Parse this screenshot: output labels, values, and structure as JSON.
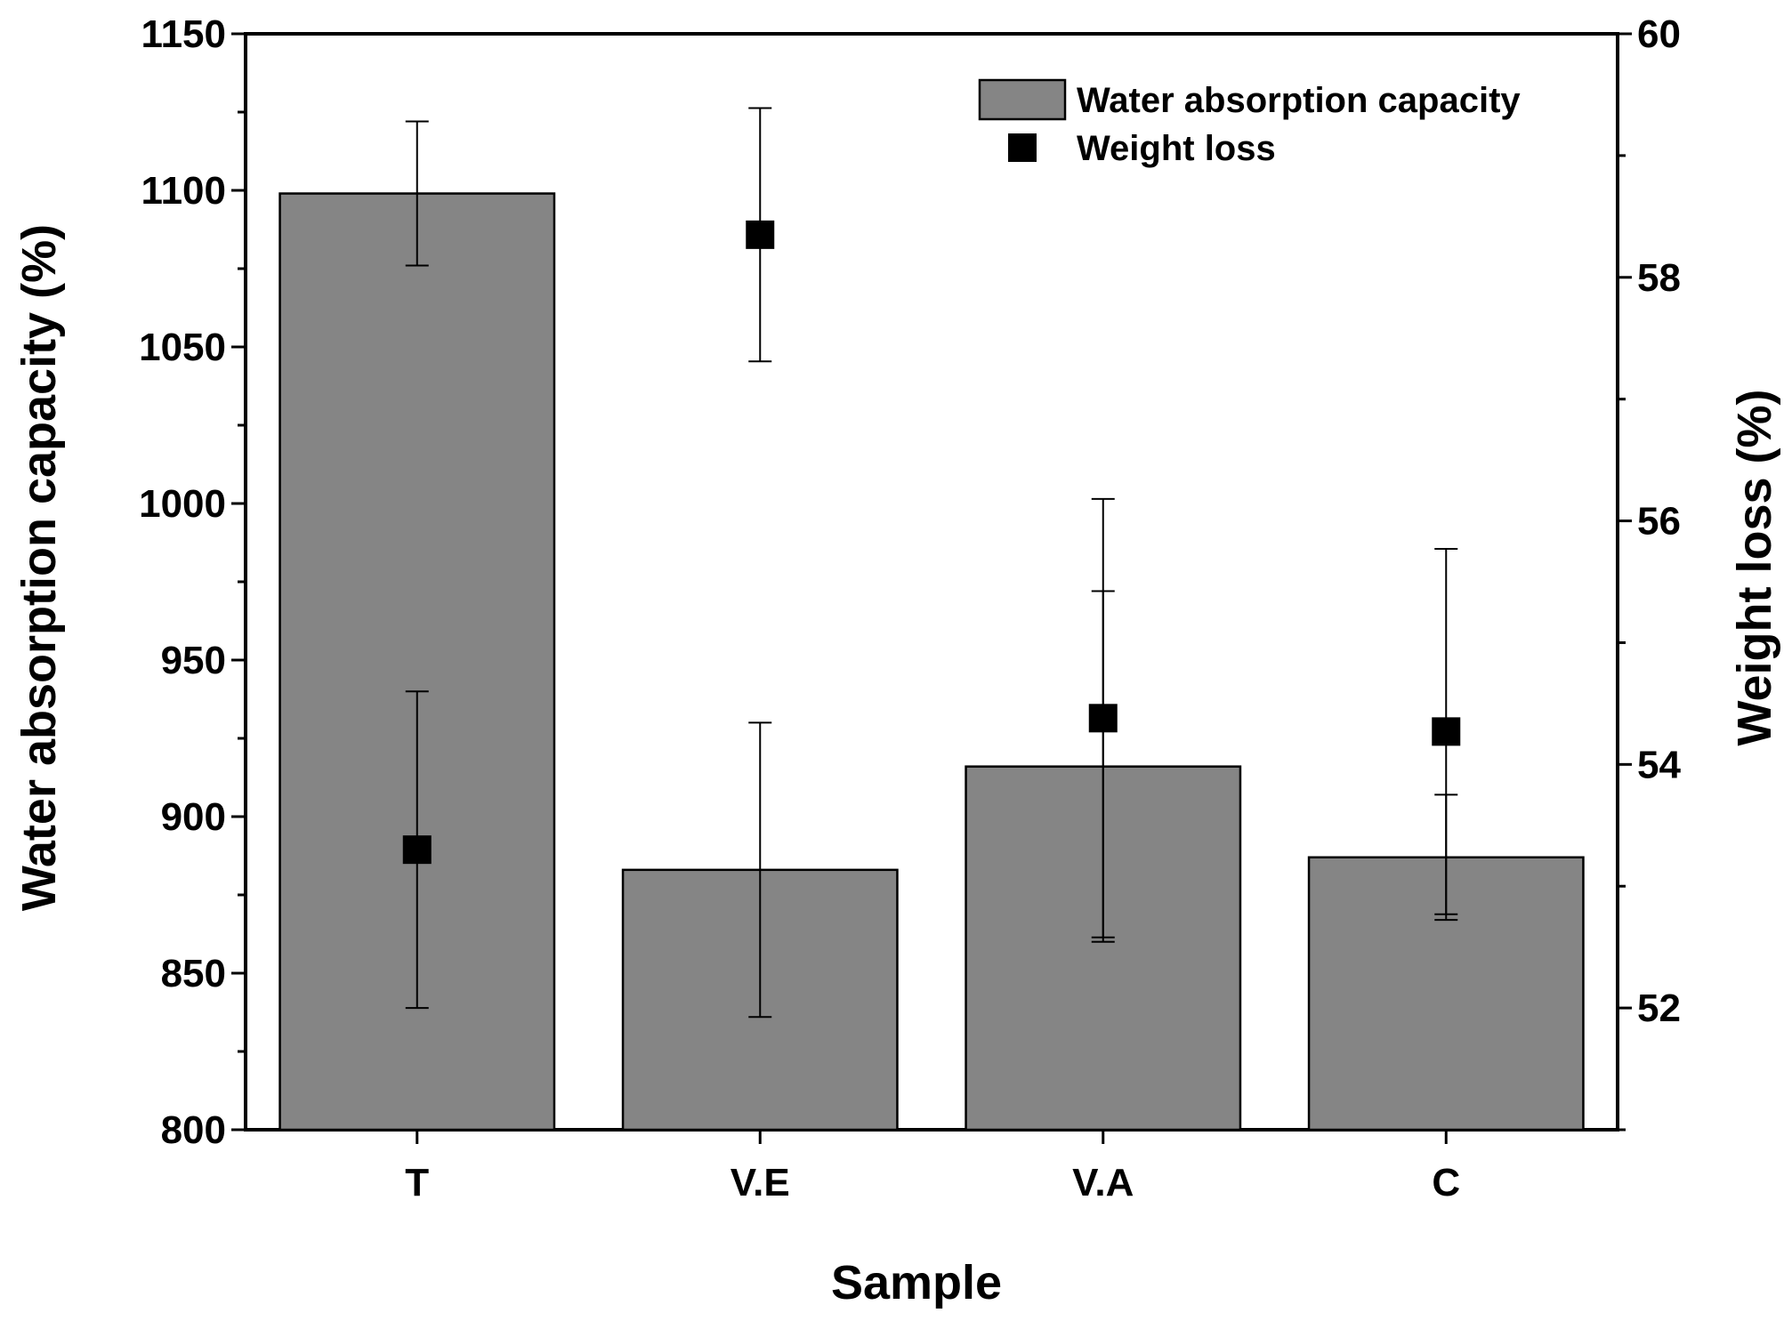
{
  "chart_data": {
    "type": "bar",
    "xlabel": "Sample",
    "ylabel_left": "Water absorption capacity (%)",
    "ylabel_right": "Weight loss (%)",
    "categories": [
      "T",
      "V.E",
      "V.A",
      "C"
    ],
    "y_left": {
      "lim": [
        800,
        1150
      ],
      "ticks": [
        800,
        850,
        900,
        950,
        1000,
        1050,
        1100,
        1150
      ],
      "tick_labels": [
        "800",
        "850",
        "900",
        "950",
        "1000",
        "1050",
        "1100",
        "1150"
      ],
      "minor_step": 25
    },
    "y_right": {
      "lim": [
        51,
        60
      ],
      "ticks": [
        52,
        54,
        56,
        58,
        60
      ],
      "tick_labels": [
        "52",
        "54",
        "56",
        "58",
        "60"
      ],
      "minor_step": 1
    },
    "series": [
      {
        "name": "Water absorption capacity",
        "kind": "bar",
        "axis": "left",
        "color": "#858585",
        "values": [
          1099,
          883,
          916,
          887
        ],
        "error": [
          23,
          47,
          56,
          20
        ]
      },
      {
        "name": "Weight loss",
        "kind": "scatter",
        "axis": "right",
        "color": "#000000",
        "marker": "square",
        "values": [
          53.3,
          58.35,
          54.38,
          54.27
        ],
        "error": [
          1.3,
          1.04,
          1.8,
          1.5
        ]
      }
    ],
    "grid": false,
    "legend_position": "top-right"
  }
}
